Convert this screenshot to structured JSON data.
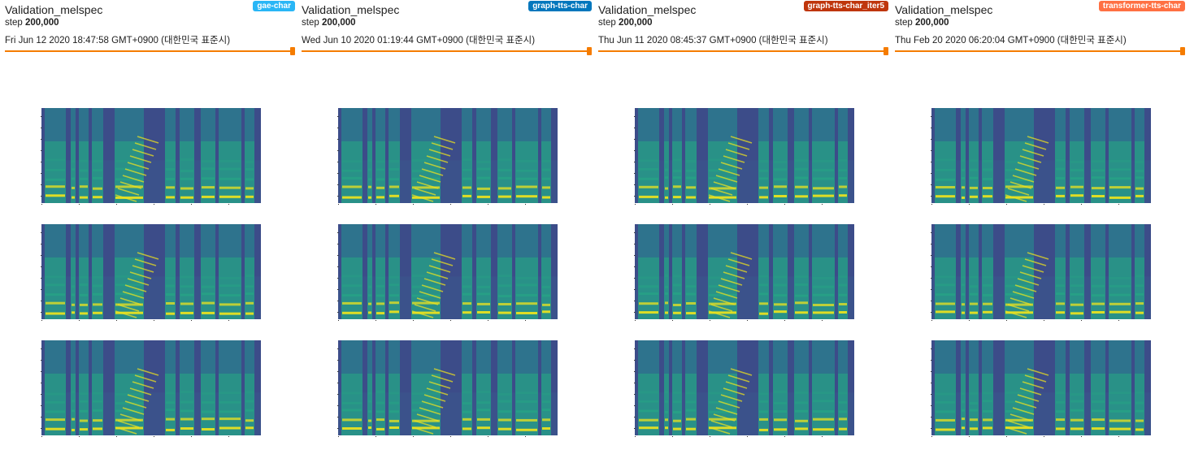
{
  "cards": [
    {
      "title": "Validation_melspec",
      "step_label": "step",
      "step_value": "200,000",
      "timestamp": "Fri Jun 12 2020 18:47:58 GMT+0900 (대한민국 표준시)",
      "run": "gae-char",
      "run_color": "#29b6f6",
      "icon": "orange-slider"
    },
    {
      "title": "Validation_melspec",
      "step_label": "step",
      "step_value": "200,000",
      "timestamp": "Wed Jun 10 2020 01:19:44 GMT+0900 (대한민국 표준시)",
      "run": "graph-tts-char",
      "run_color": "#0277bd",
      "icon": "orange-slider"
    },
    {
      "title": "Validation_melspec",
      "step_label": "step",
      "step_value": "200,000",
      "timestamp": "Thu Jun 11 2020 08:45:37 GMT+0900 (대한민국 표준시)",
      "run": "graph-tts-char_iter5",
      "run_color": "#bf360c",
      "icon": "orange-slider"
    },
    {
      "title": "Validation_melspec",
      "step_label": "step",
      "step_value": "200,000",
      "timestamp": "Thu Feb 20 2020 06:20:04 GMT+0900 (대한민국 표준시)",
      "run": "transformer-tts-char",
      "run_color": "#ff7043",
      "icon": "orange-slider"
    }
  ],
  "colors": {
    "slider": "#f57c00",
    "spec_bg": "#3b528b",
    "spec_low": "#2c7a8e",
    "spec_mid": "#26a984",
    "spec_high": "#f2e51c"
  }
}
